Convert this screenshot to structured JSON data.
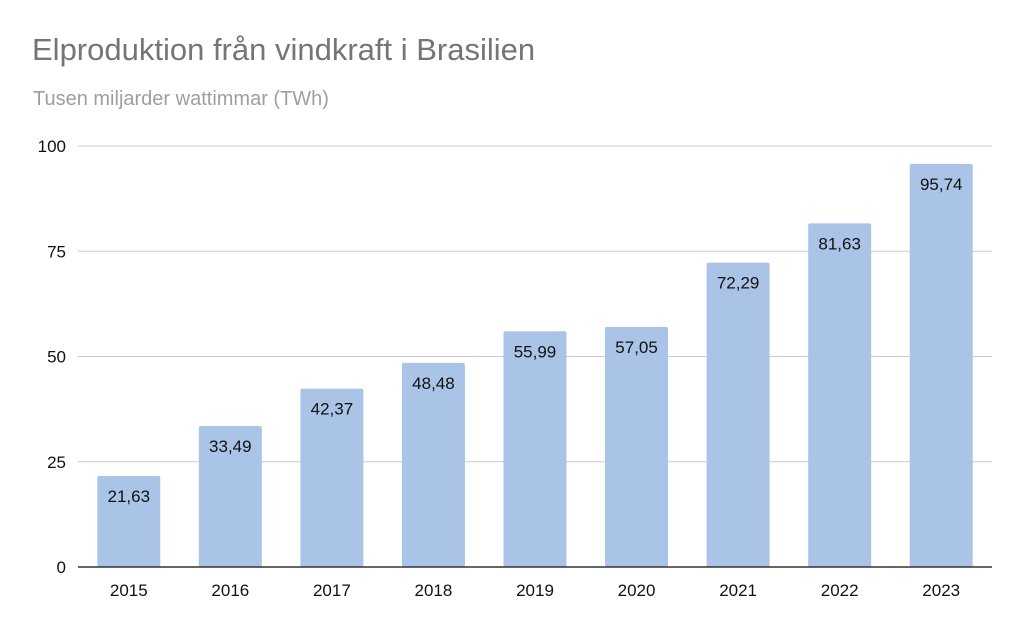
{
  "chart_data": {
    "type": "bar",
    "title": "Elproduktion från vindkraft i Brasilien",
    "subtitle": "Tusen miljarder wattimmar (TWh)",
    "xlabel": "",
    "ylabel": "",
    "categories": [
      "2015",
      "2016",
      "2017",
      "2018",
      "2019",
      "2020",
      "2021",
      "2022",
      "2023"
    ],
    "values": [
      21.63,
      33.49,
      42.37,
      48.48,
      55.99,
      57.05,
      72.29,
      81.63,
      95.74
    ],
    "value_labels": [
      "21,63",
      "33,49",
      "42,37",
      "48,48",
      "55,99",
      "57,05",
      "72,29",
      "81,63",
      "95,74"
    ],
    "ylim": [
      0,
      100
    ],
    "yticks": [
      "0",
      "25",
      "50",
      "75",
      "100"
    ],
    "grid": true,
    "legend": "none",
    "colors": {
      "bar": "#aac4e8",
      "title": "#757575",
      "subtitle": "#9e9e9e",
      "grid": "#cccccc",
      "axis": "#333333",
      "text": "#111111"
    }
  }
}
